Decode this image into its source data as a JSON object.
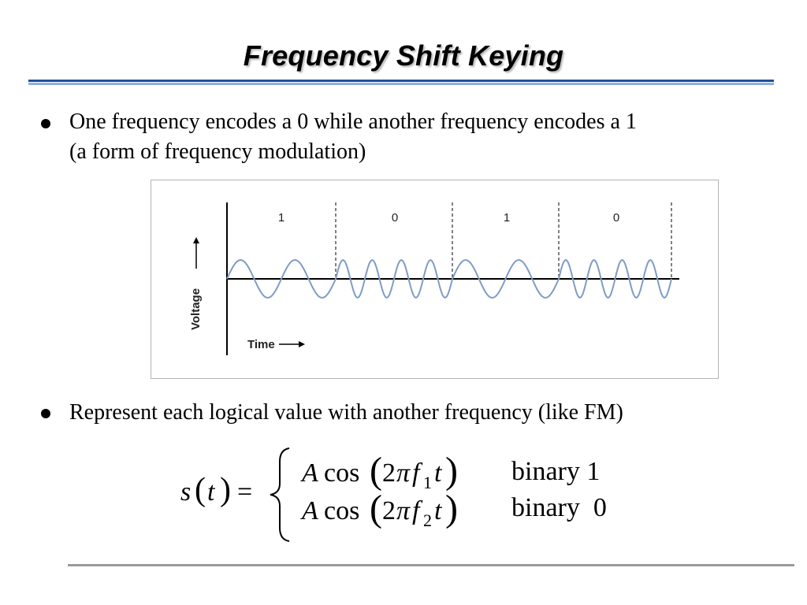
{
  "slide": {
    "title": "Frequency Shift Keying",
    "bullets": [
      "One frequency encodes a 0 while another frequency encodes a 1",
      "(a form of frequency modulation)",
      "Represent each logical value with another frequency (like FM)"
    ]
  },
  "figure": {
    "bit_labels": [
      "1",
      "0",
      "1",
      "0"
    ],
    "y_axis_label": "Voltage",
    "x_axis_label": "Time",
    "wave_color": "#7f9cc4"
  },
  "equation": {
    "lhs_s": "s",
    "lhs_t": "t",
    "eq_sign": "=",
    "case1": {
      "A": "A",
      "cos": "cos",
      "two": "2",
      "pi": "π",
      "f": "f",
      "sub": "1",
      "t": "t",
      "label": "binary 1"
    },
    "case2": {
      "A": "A",
      "cos": "cos",
      "two": "2",
      "pi": "π",
      "f": "f",
      "sub": "2",
      "t": "t",
      "label": "binary  0"
    }
  },
  "colors": {
    "title_rule_blue": "#1f4e9c",
    "title_rule_light": "#8fb0dc",
    "footer_rule": "#9a9a9a"
  }
}
